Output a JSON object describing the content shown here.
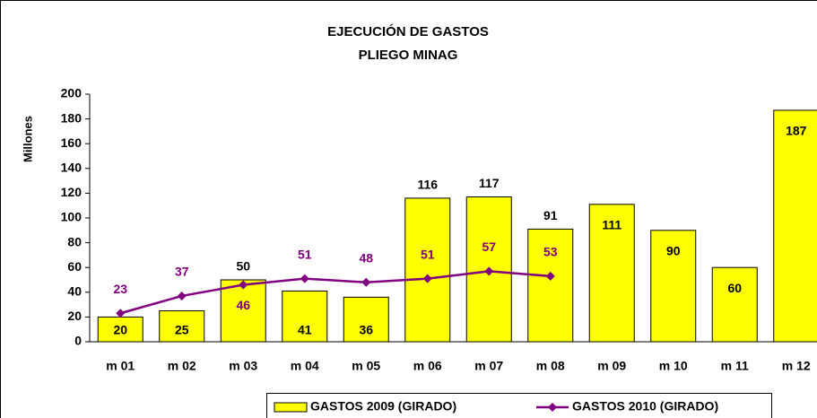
{
  "chart_data": {
    "type": "bar_line",
    "title": "EJECUCIÓN DE GASTOS",
    "subtitle": "PLIEGO MINAG",
    "y_label": "Millones",
    "categories": [
      "m 01",
      "m 02",
      "m 03",
      "m 04",
      "m 05",
      "m 06",
      "m 07",
      "m 08",
      "m 09",
      "m 10",
      "m 11",
      "m 12"
    ],
    "series": [
      {
        "name": "GASTOS 2009 (GIRADO)",
        "type": "bar",
        "color": "#ffff00",
        "values": [
          20,
          25,
          50,
          41,
          36,
          116,
          117,
          91,
          111,
          90,
          60,
          187
        ]
      },
      {
        "name": "GASTOS 2010 (GIRADO)",
        "type": "line",
        "color": "#800080",
        "values": [
          23,
          37,
          46,
          51,
          48,
          51,
          57,
          53,
          null,
          null,
          null,
          null
        ]
      }
    ],
    "ylim": [
      0,
      200
    ],
    "yticks": [
      0,
      20,
      40,
      60,
      80,
      100,
      120,
      140,
      160,
      180,
      200
    ]
  }
}
